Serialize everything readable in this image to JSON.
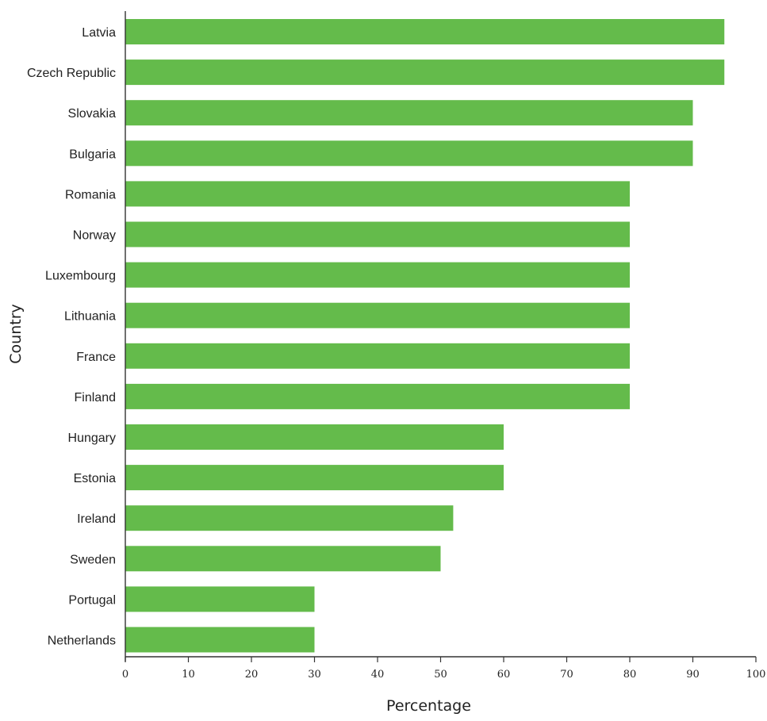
{
  "chart_data": {
    "type": "bar",
    "orientation": "horizontal",
    "categories": [
      "Latvia",
      "Czech Republic",
      "Slovakia",
      "Bulgaria",
      "Romania",
      "Norway",
      "Luxembourg",
      "Lithuania",
      "France",
      "Finland",
      "Hungary",
      "Estonia",
      "Ireland",
      "Sweden",
      "Portugal",
      "Netherlands"
    ],
    "values": [
      95,
      95,
      90,
      90,
      80,
      80,
      80,
      80,
      80,
      80,
      60,
      60,
      52,
      50,
      30,
      30
    ],
    "xlabel": "Percentage",
    "ylabel": "Country",
    "xlim": [
      0,
      100
    ],
    "xticks": [
      0,
      10,
      20,
      30,
      40,
      50,
      60,
      70,
      80,
      90,
      100
    ],
    "grid": false,
    "bar_color": "#64bb4b"
  }
}
